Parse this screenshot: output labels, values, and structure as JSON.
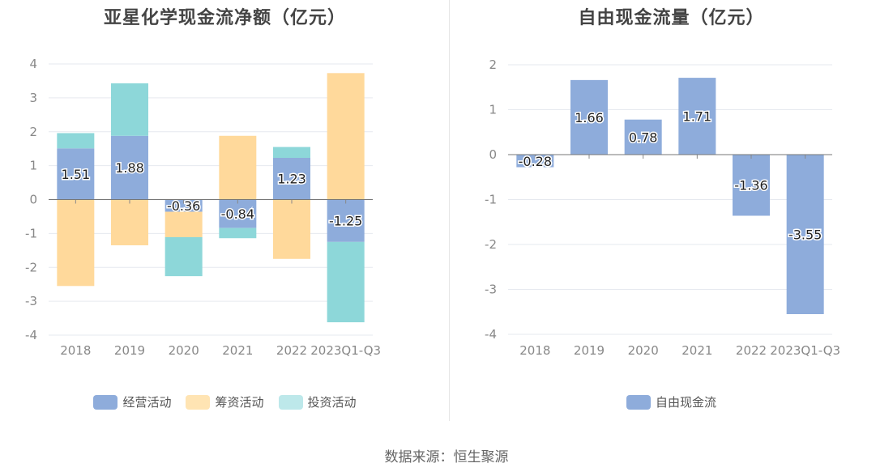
{
  "chart_data": [
    {
      "type": "bar",
      "stacked": true,
      "title": "亚星化学现金流净额（亿元）",
      "categories": [
        "2018",
        "2019",
        "2020",
        "2021",
        "2022",
        "2023Q1-Q3"
      ],
      "ylim": [
        -4,
        4
      ],
      "yticks": [
        "4",
        "3",
        "2",
        "1",
        "0",
        "-1",
        "-2",
        "-3",
        "-4"
      ],
      "grid": true,
      "legend_position": "bottom",
      "series": [
        {
          "name": "经营活动",
          "color": "#8eacdb",
          "values": [
            1.51,
            1.88,
            -0.36,
            -0.84,
            1.23,
            -1.25
          ],
          "labels": [
            "1.51",
            "1.88",
            "-0.36",
            "-0.84",
            "1.23",
            "-1.25"
          ]
        },
        {
          "name": "筹资活动",
          "color": "#ffd99b",
          "values": [
            -2.55,
            -1.35,
            -0.75,
            1.88,
            -1.75,
            3.73
          ]
        },
        {
          "name": "投资活动",
          "color": "#8dd7d9",
          "values": [
            0.45,
            1.55,
            -1.15,
            -0.3,
            0.32,
            -2.37
          ]
        }
      ]
    },
    {
      "type": "bar",
      "title": "自由现金流量（亿元）",
      "categories": [
        "2018",
        "2019",
        "2020",
        "2021",
        "2022",
        "2023Q1-Q3"
      ],
      "ylim": [
        -4,
        2
      ],
      "yticks": [
        "2",
        "1",
        "0",
        "-1",
        "-2",
        "-3",
        "-4"
      ],
      "grid": true,
      "legend_position": "bottom",
      "series": [
        {
          "name": "自由现金流",
          "color": "#8eacdb",
          "values": [
            -0.28,
            1.66,
            0.78,
            1.71,
            -1.36,
            -3.55
          ],
          "labels": [
            "-0.28",
            "1.66",
            "0.78",
            "1.71",
            "-1.36",
            "-3.55"
          ]
        }
      ]
    }
  ],
  "source": "数据来源：恒生聚源"
}
